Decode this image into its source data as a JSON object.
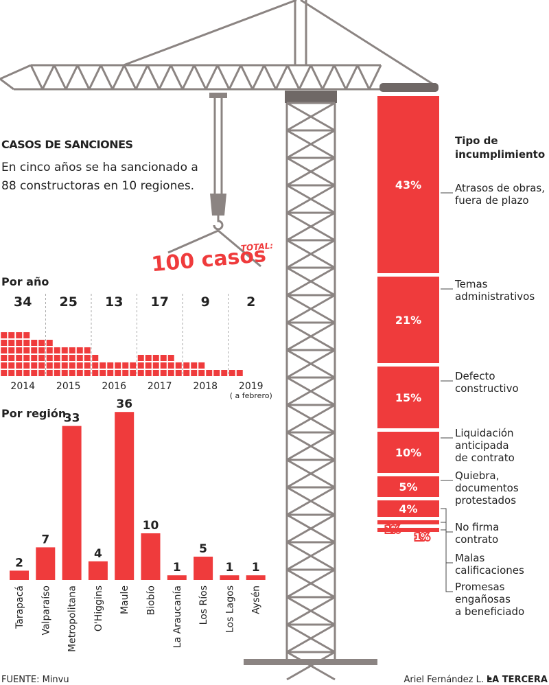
{
  "title": "CASOS DE SANCIONES",
  "subtitle": "En cinco años se ha sancionado a\n88 constructoras en 10 regiones.",
  "total_label": "TOTAL:",
  "total_value": "100 casos",
  "source": "FUENTE: Minvu",
  "credit": "Ariel Fernández L.",
  "publisher": "LA TERCERA",
  "chart_data": [
    {
      "type": "waffle",
      "title": "Por año",
      "color": "#ef3b3c",
      "categories": [
        "2014",
        "2015",
        "2016",
        "2017",
        "2018",
        "2019"
      ],
      "values": [
        34,
        25,
        13,
        17,
        9,
        2
      ],
      "note": "( a febrero)"
    },
    {
      "type": "bar",
      "title": "Por región",
      "color": "#ef3b3c",
      "categories": [
        "Tarapacá",
        "Valparaíso",
        "Metropolitana",
        "O'Higgins",
        "Maule",
        "Biobío",
        "La Araucanía",
        "Los Ríos",
        "Los Lagos",
        "Aysén"
      ],
      "values": [
        2,
        7,
        33,
        4,
        36,
        10,
        1,
        5,
        1,
        1
      ]
    },
    {
      "type": "stacked",
      "title": "Tipo de\nincumplimiento",
      "color": "#ef3b3c",
      "categories": [
        "Atrasos de obras,\nfuera de plazo",
        "Temas\nadministrativos",
        "Defecto\nconstructivo",
        "Liquidación\nanticipada\nde contrato",
        "Quiebra,\ndocumentos\nprotestados",
        "No firma\ncontrato",
        "Malas\ncalificaciones",
        "Promesas\nengañosas\na beneficiado"
      ],
      "values": [
        43,
        21,
        15,
        10,
        5,
        4,
        1,
        1
      ],
      "value_labels": [
        "43%",
        "21%",
        "15%",
        "10%",
        "5%",
        "4%",
        "1%",
        "1%"
      ]
    }
  ]
}
